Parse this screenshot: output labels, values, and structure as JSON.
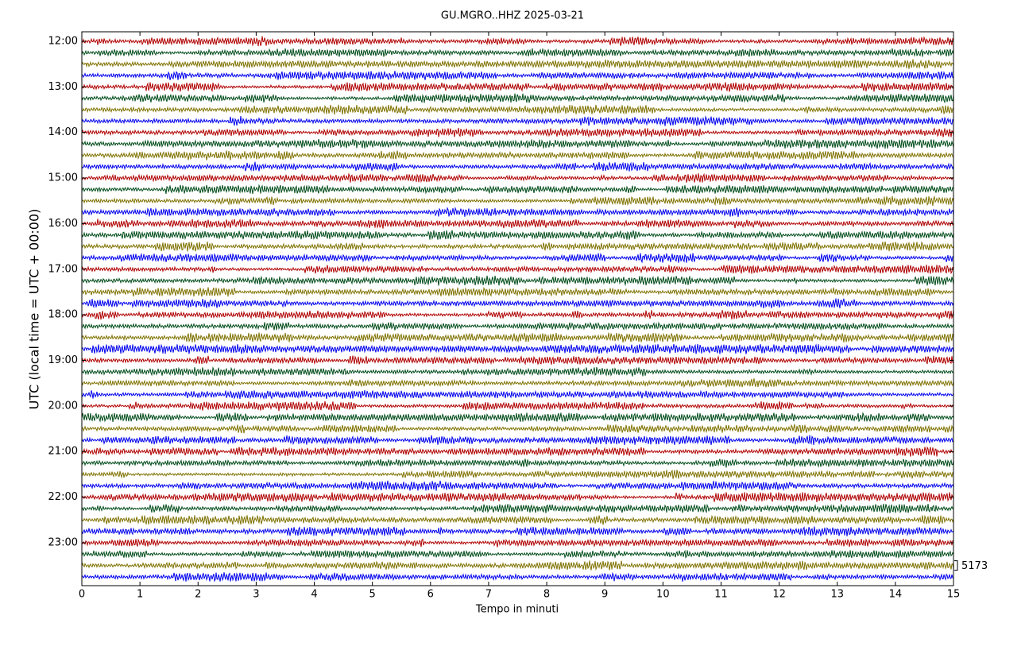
{
  "chart_data": {
    "type": "helicorder",
    "title": "GU.MGRO..HHZ 2025-03-21",
    "xlabel": "Tempo in minuti",
    "ylabel": "UTC (local time = UTC + 00:00)",
    "xlim": [
      0,
      15
    ],
    "xticks": [
      0,
      1,
      2,
      3,
      4,
      5,
      6,
      7,
      8,
      9,
      10,
      11,
      12,
      13,
      14,
      15
    ],
    "ylim": [
      -12.5,
      716.5
    ],
    "yticks": [
      {
        "value": 0,
        "label": "12:00"
      },
      {
        "value": 60,
        "label": "13:00"
      },
      {
        "value": 120,
        "label": "14:00"
      },
      {
        "value": 180,
        "label": "15:00"
      },
      {
        "value": 240,
        "label": "16:00"
      },
      {
        "value": 300,
        "label": "17:00"
      },
      {
        "value": 360,
        "label": "18:00"
      },
      {
        "value": 420,
        "label": "19:00"
      },
      {
        "value": 480,
        "label": "20:00"
      },
      {
        "value": 540,
        "label": "21:00"
      },
      {
        "value": 600,
        "label": "22:00"
      },
      {
        "value": 660,
        "label": "23:00"
      }
    ],
    "trace_interval_minutes": 15,
    "trace_colors": [
      "#b00000",
      "#004c1a",
      "#7f7200",
      "#0000ee"
    ],
    "scale_label": "5173"
  }
}
